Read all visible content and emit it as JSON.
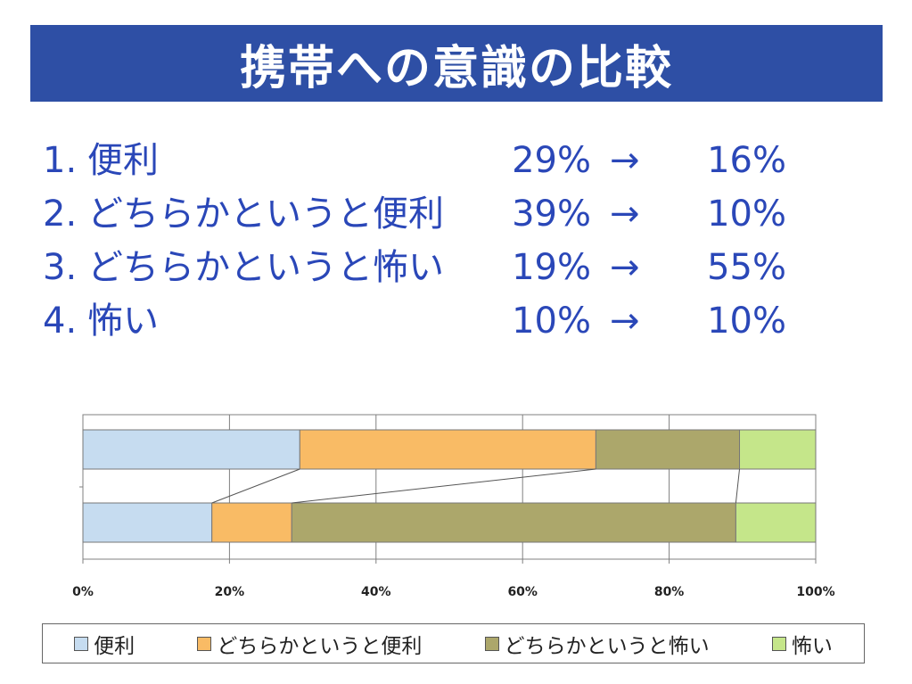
{
  "title": "携帯への意識の比較",
  "items": [
    {
      "num": "1.",
      "label": "便利",
      "before": "29%",
      "arrow": "→",
      "after": "16%"
    },
    {
      "num": "2.",
      "label": "どちらかというと便利",
      "before": "39%",
      "arrow": "→",
      "after": "10%"
    },
    {
      "num": "3.",
      "label": "どちらかというと怖い",
      "before": "19%",
      "arrow": "→",
      "after": "55%"
    },
    {
      "num": "4.",
      "label": "怖い",
      "before": "10%",
      "arrow": "→",
      "after": "10%"
    }
  ],
  "chart_data": {
    "type": "bar",
    "orientation": "horizontal",
    "stacked": "100%",
    "categories": [
      "",
      ""
    ],
    "series": [
      {
        "name": "便利",
        "values": [
          29.6,
          17.6
        ],
        "color": "#c6dcf0"
      },
      {
        "name": "どちらかというと便利",
        "values": [
          40.4,
          10.9
        ],
        "color": "#f9bb65"
      },
      {
        "name": "どちらかというと怖い",
        "values": [
          19.6,
          60.6
        ],
        "color": "#aca76b"
      },
      {
        "name": "怖い",
        "values": [
          10.4,
          10.9
        ],
        "color": "#c5e68a"
      }
    ],
    "xlim": [
      0,
      100
    ],
    "xticks": [
      "0%",
      "20%",
      "40%",
      "60%",
      "80%",
      "100%"
    ],
    "grid": true,
    "legend": "bottom"
  }
}
